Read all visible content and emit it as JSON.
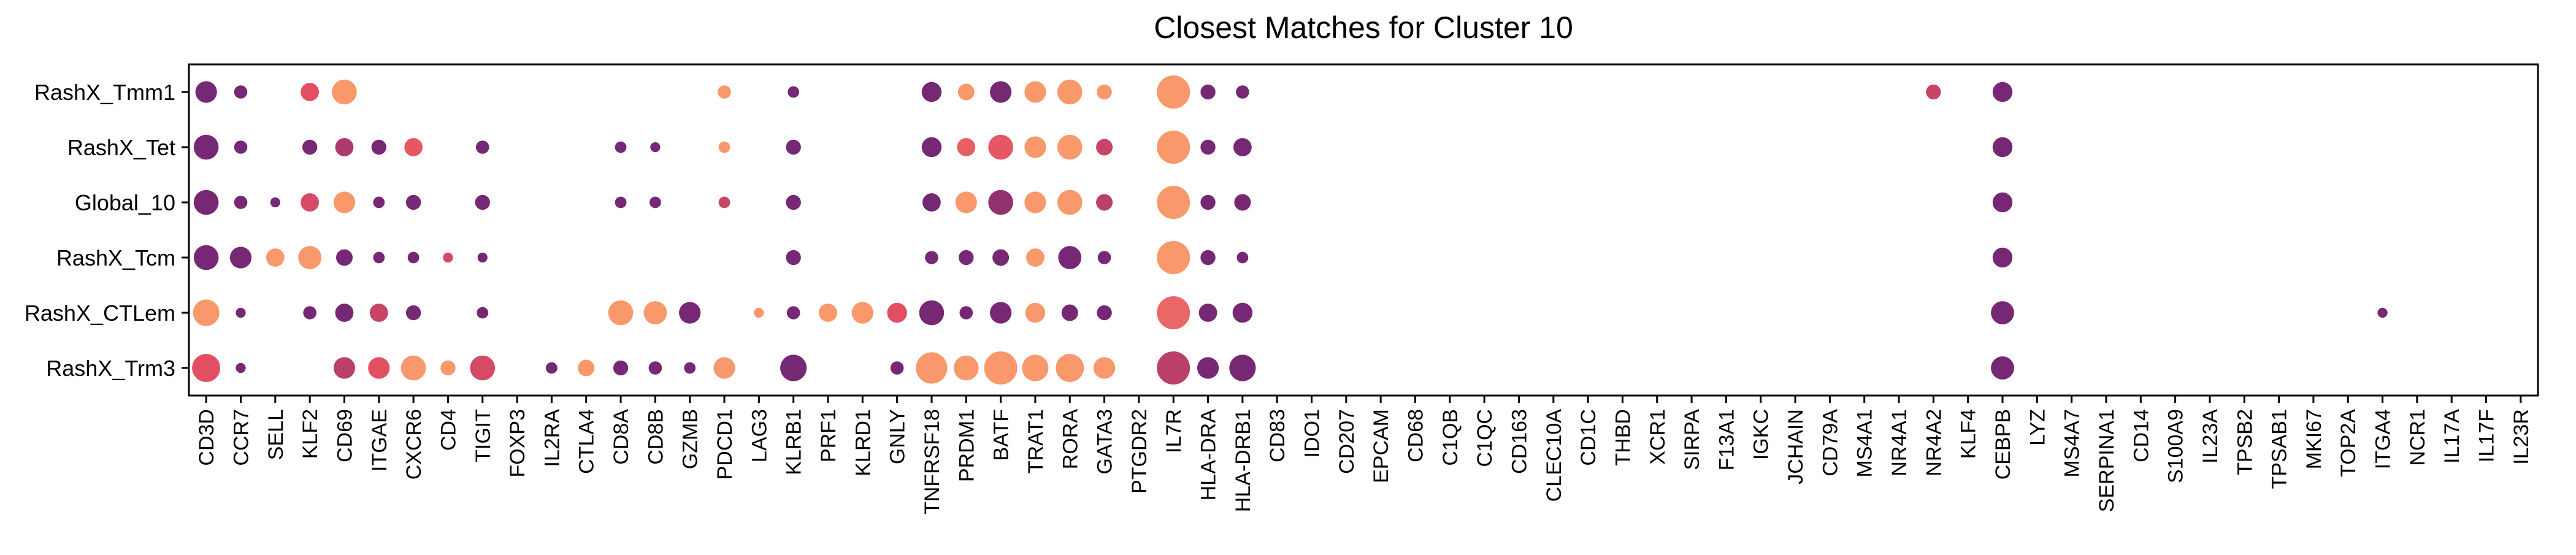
{
  "chart_data": {
    "type": "dot",
    "title": "Closest Matches for Cluster 10",
    "xlabel": "",
    "ylabel": "",
    "grid": false,
    "legend": "none",
    "categories": [
      "CD3D",
      "CCR7",
      "SELL",
      "KLF2",
      "CD69",
      "ITGAE",
      "CXCR6",
      "CD4",
      "TIGIT",
      "FOXP3",
      "IL2RA",
      "CTLA4",
      "CD8A",
      "CD8B",
      "GZMB",
      "PDCD1",
      "LAG3",
      "KLRB1",
      "PRF1",
      "KLRD1",
      "GNLY",
      "TNFRSF18",
      "PRDM1",
      "BATF",
      "TRAT1",
      "RORA",
      "GATA3",
      "PTGDR2",
      "IL7R",
      "HLA-DRA",
      "HLA-DRB1",
      "CD83",
      "IDO1",
      "CD207",
      "EPCAM",
      "CD68",
      "C1QB",
      "C1QC",
      "CD163",
      "CLEC10A",
      "CD1C",
      "THBD",
      "XCR1",
      "SIRPA",
      "F13A1",
      "IGKC",
      "JCHAIN",
      "CD79A",
      "MS4A1",
      "NR4A1",
      "NR4A2",
      "KLF4",
      "CEBPB",
      "LYZ",
      "MS4A7",
      "SERPINA1",
      "CD14",
      "S100A9",
      "IL23A",
      "TPSB2",
      "TPSAB1",
      "MKI67",
      "TOP2A",
      "ITGA4",
      "NCR1",
      "IL17A",
      "IL17F",
      "IL23R"
    ],
    "rows": [
      "RashX_Tmm1",
      "RashX_Tet",
      "Global_10",
      "RashX_Tcm",
      "RashX_CTLem",
      "RashX_Trm3"
    ],
    "colors": {
      "low": "#5b1e78",
      "mid": "#e24f62",
      "high": "#fca06b"
    },
    "points": [
      {
        "row": "RashX_Tmm1",
        "gene": "CD3D",
        "size": 0.65,
        "color": 0.1
      },
      {
        "row": "RashX_Tmm1",
        "gene": "CCR7",
        "size": 0.4,
        "color": 0.1
      },
      {
        "row": "RashX_Tmm1",
        "gene": "KLF2",
        "size": 0.55,
        "color": 0.5
      },
      {
        "row": "RashX_Tmm1",
        "gene": "CD69",
        "size": 0.75,
        "color": 0.95
      },
      {
        "row": "RashX_Tmm1",
        "gene": "PDCD1",
        "size": 0.4,
        "color": 0.95
      },
      {
        "row": "RashX_Tmm1",
        "gene": "KLRB1",
        "size": 0.35,
        "color": 0.1
      },
      {
        "row": "RashX_Tmm1",
        "gene": "TNFRSF18",
        "size": 0.6,
        "color": 0.1
      },
      {
        "row": "RashX_Tmm1",
        "gene": "PRDM1",
        "size": 0.5,
        "color": 0.95
      },
      {
        "row": "RashX_Tmm1",
        "gene": "BATF",
        "size": 0.65,
        "color": 0.1
      },
      {
        "row": "RashX_Tmm1",
        "gene": "TRAT1",
        "size": 0.65,
        "color": 0.95
      },
      {
        "row": "RashX_Tmm1",
        "gene": "RORA",
        "size": 0.75,
        "color": 0.95
      },
      {
        "row": "RashX_Tmm1",
        "gene": "GATA3",
        "size": 0.45,
        "color": 0.95
      },
      {
        "row": "RashX_Tmm1",
        "gene": "IL7R",
        "size": 1.0,
        "color": 0.95
      },
      {
        "row": "RashX_Tmm1",
        "gene": "HLA-DRA",
        "size": 0.45,
        "color": 0.1
      },
      {
        "row": "RashX_Tmm1",
        "gene": "HLA-DRB1",
        "size": 0.4,
        "color": 0.1
      },
      {
        "row": "RashX_Tmm1",
        "gene": "NR4A2",
        "size": 0.45,
        "color": 0.4
      },
      {
        "row": "RashX_Tmm1",
        "gene": "CEBPB",
        "size": 0.6,
        "color": 0.1
      },
      {
        "row": "RashX_Tet",
        "gene": "CD3D",
        "size": 0.75,
        "color": 0.1
      },
      {
        "row": "RashX_Tet",
        "gene": "CCR7",
        "size": 0.4,
        "color": 0.1
      },
      {
        "row": "RashX_Tet",
        "gene": "KLF2",
        "size": 0.45,
        "color": 0.1
      },
      {
        "row": "RashX_Tet",
        "gene": "CD69",
        "size": 0.55,
        "color": 0.3
      },
      {
        "row": "RashX_Tet",
        "gene": "ITGAE",
        "size": 0.45,
        "color": 0.1
      },
      {
        "row": "RashX_Tet",
        "gene": "CXCR6",
        "size": 0.55,
        "color": 0.55
      },
      {
        "row": "RashX_Tet",
        "gene": "TIGIT",
        "size": 0.4,
        "color": 0.1
      },
      {
        "row": "RashX_Tet",
        "gene": "CD8A",
        "size": 0.35,
        "color": 0.1
      },
      {
        "row": "RashX_Tet",
        "gene": "CD8B",
        "size": 0.3,
        "color": 0.1
      },
      {
        "row": "RashX_Tet",
        "gene": "PDCD1",
        "size": 0.35,
        "color": 0.95
      },
      {
        "row": "RashX_Tet",
        "gene": "KLRB1",
        "size": 0.45,
        "color": 0.1
      },
      {
        "row": "RashX_Tet",
        "gene": "TNFRSF18",
        "size": 0.6,
        "color": 0.1
      },
      {
        "row": "RashX_Tet",
        "gene": "PRDM1",
        "size": 0.55,
        "color": 0.6
      },
      {
        "row": "RashX_Tet",
        "gene": "BATF",
        "size": 0.75,
        "color": 0.55
      },
      {
        "row": "RashX_Tet",
        "gene": "TRAT1",
        "size": 0.65,
        "color": 0.95
      },
      {
        "row": "RashX_Tet",
        "gene": "RORA",
        "size": 0.75,
        "color": 0.95
      },
      {
        "row": "RashX_Tet",
        "gene": "GATA3",
        "size": 0.5,
        "color": 0.4
      },
      {
        "row": "RashX_Tet",
        "gene": "IL7R",
        "size": 1.0,
        "color": 0.95
      },
      {
        "row": "RashX_Tet",
        "gene": "HLA-DRA",
        "size": 0.45,
        "color": 0.1
      },
      {
        "row": "RashX_Tet",
        "gene": "HLA-DRB1",
        "size": 0.55,
        "color": 0.1
      },
      {
        "row": "RashX_Tet",
        "gene": "CEBPB",
        "size": 0.6,
        "color": 0.1
      },
      {
        "row": "Global_10",
        "gene": "CD3D",
        "size": 0.75,
        "color": 0.1
      },
      {
        "row": "Global_10",
        "gene": "CCR7",
        "size": 0.4,
        "color": 0.1
      },
      {
        "row": "Global_10",
        "gene": "SELL",
        "size": 0.3,
        "color": 0.1
      },
      {
        "row": "Global_10",
        "gene": "KLF2",
        "size": 0.55,
        "color": 0.45
      },
      {
        "row": "Global_10",
        "gene": "CD69",
        "size": 0.65,
        "color": 0.95
      },
      {
        "row": "Global_10",
        "gene": "ITGAE",
        "size": 0.35,
        "color": 0.1
      },
      {
        "row": "Global_10",
        "gene": "CXCR6",
        "size": 0.45,
        "color": 0.1
      },
      {
        "row": "Global_10",
        "gene": "TIGIT",
        "size": 0.45,
        "color": 0.1
      },
      {
        "row": "Global_10",
        "gene": "CD8A",
        "size": 0.35,
        "color": 0.1
      },
      {
        "row": "Global_10",
        "gene": "CD8B",
        "size": 0.35,
        "color": 0.1
      },
      {
        "row": "Global_10",
        "gene": "PDCD1",
        "size": 0.35,
        "color": 0.4
      },
      {
        "row": "Global_10",
        "gene": "KLRB1",
        "size": 0.45,
        "color": 0.1
      },
      {
        "row": "Global_10",
        "gene": "TNFRSF18",
        "size": 0.55,
        "color": 0.1
      },
      {
        "row": "Global_10",
        "gene": "PRDM1",
        "size": 0.65,
        "color": 0.95
      },
      {
        "row": "Global_10",
        "gene": "BATF",
        "size": 0.75,
        "color": 0.2
      },
      {
        "row": "Global_10",
        "gene": "TRAT1",
        "size": 0.65,
        "color": 0.95
      },
      {
        "row": "Global_10",
        "gene": "RORA",
        "size": 0.75,
        "color": 0.95
      },
      {
        "row": "Global_10",
        "gene": "GATA3",
        "size": 0.5,
        "color": 0.35
      },
      {
        "row": "Global_10",
        "gene": "IL7R",
        "size": 1.0,
        "color": 0.95
      },
      {
        "row": "Global_10",
        "gene": "HLA-DRA",
        "size": 0.45,
        "color": 0.1
      },
      {
        "row": "Global_10",
        "gene": "HLA-DRB1",
        "size": 0.5,
        "color": 0.1
      },
      {
        "row": "Global_10",
        "gene": "CEBPB",
        "size": 0.6,
        "color": 0.1
      },
      {
        "row": "RashX_Tcm",
        "gene": "CD3D",
        "size": 0.75,
        "color": 0.1
      },
      {
        "row": "RashX_Tcm",
        "gene": "CCR7",
        "size": 0.65,
        "color": 0.1
      },
      {
        "row": "RashX_Tcm",
        "gene": "SELL",
        "size": 0.55,
        "color": 0.95
      },
      {
        "row": "RashX_Tcm",
        "gene": "KLF2",
        "size": 0.7,
        "color": 0.95
      },
      {
        "row": "RashX_Tcm",
        "gene": "CD69",
        "size": 0.5,
        "color": 0.1
      },
      {
        "row": "RashX_Tcm",
        "gene": "ITGAE",
        "size": 0.35,
        "color": 0.1
      },
      {
        "row": "RashX_Tcm",
        "gene": "CXCR6",
        "size": 0.35,
        "color": 0.1
      },
      {
        "row": "RashX_Tcm",
        "gene": "CD4",
        "size": 0.3,
        "color": 0.45
      },
      {
        "row": "RashX_Tcm",
        "gene": "TIGIT",
        "size": 0.3,
        "color": 0.1
      },
      {
        "row": "RashX_Tcm",
        "gene": "KLRB1",
        "size": 0.45,
        "color": 0.1
      },
      {
        "row": "RashX_Tcm",
        "gene": "TNFRSF18",
        "size": 0.4,
        "color": 0.1
      },
      {
        "row": "RashX_Tcm",
        "gene": "PRDM1",
        "size": 0.45,
        "color": 0.1
      },
      {
        "row": "RashX_Tcm",
        "gene": "BATF",
        "size": 0.5,
        "color": 0.1
      },
      {
        "row": "RashX_Tcm",
        "gene": "TRAT1",
        "size": 0.55,
        "color": 0.95
      },
      {
        "row": "RashX_Tcm",
        "gene": "RORA",
        "size": 0.7,
        "color": 0.1
      },
      {
        "row": "RashX_Tcm",
        "gene": "GATA3",
        "size": 0.4,
        "color": 0.1
      },
      {
        "row": "RashX_Tcm",
        "gene": "IL7R",
        "size": 1.0,
        "color": 0.95
      },
      {
        "row": "RashX_Tcm",
        "gene": "HLA-DRA",
        "size": 0.45,
        "color": 0.1
      },
      {
        "row": "RashX_Tcm",
        "gene": "HLA-DRB1",
        "size": 0.35,
        "color": 0.1
      },
      {
        "row": "RashX_Tcm",
        "gene": "CEBPB",
        "size": 0.6,
        "color": 0.1
      },
      {
        "row": "RashX_CTLem",
        "gene": "CD3D",
        "size": 0.8,
        "color": 0.95
      },
      {
        "row": "RashX_CTLem",
        "gene": "CCR7",
        "size": 0.3,
        "color": 0.1
      },
      {
        "row": "RashX_CTLem",
        "gene": "KLF2",
        "size": 0.4,
        "color": 0.1
      },
      {
        "row": "RashX_CTLem",
        "gene": "CD69",
        "size": 0.55,
        "color": 0.1
      },
      {
        "row": "RashX_CTLem",
        "gene": "ITGAE",
        "size": 0.55,
        "color": 0.4
      },
      {
        "row": "RashX_CTLem",
        "gene": "CXCR6",
        "size": 0.45,
        "color": 0.1
      },
      {
        "row": "RashX_CTLem",
        "gene": "TIGIT",
        "size": 0.35,
        "color": 0.1
      },
      {
        "row": "RashX_CTLem",
        "gene": "CD8A",
        "size": 0.75,
        "color": 0.95
      },
      {
        "row": "RashX_CTLem",
        "gene": "CD8B",
        "size": 0.7,
        "color": 0.95
      },
      {
        "row": "RashX_CTLem",
        "gene": "GZMB",
        "size": 0.65,
        "color": 0.1
      },
      {
        "row": "RashX_CTLem",
        "gene": "LAG3",
        "size": 0.3,
        "color": 0.95
      },
      {
        "row": "RashX_CTLem",
        "gene": "KLRB1",
        "size": 0.4,
        "color": 0.1
      },
      {
        "row": "RashX_CTLem",
        "gene": "PRF1",
        "size": 0.55,
        "color": 0.95
      },
      {
        "row": "RashX_CTLem",
        "gene": "KLRD1",
        "size": 0.65,
        "color": 0.95
      },
      {
        "row": "RashX_CTLem",
        "gene": "GNLY",
        "size": 0.6,
        "color": 0.5
      },
      {
        "row": "RashX_CTLem",
        "gene": "TNFRSF18",
        "size": 0.75,
        "color": 0.1
      },
      {
        "row": "RashX_CTLem",
        "gene": "PRDM1",
        "size": 0.4,
        "color": 0.1
      },
      {
        "row": "RashX_CTLem",
        "gene": "BATF",
        "size": 0.65,
        "color": 0.1
      },
      {
        "row": "RashX_CTLem",
        "gene": "TRAT1",
        "size": 0.6,
        "color": 0.95
      },
      {
        "row": "RashX_CTLem",
        "gene": "RORA",
        "size": 0.5,
        "color": 0.1
      },
      {
        "row": "RashX_CTLem",
        "gene": "GATA3",
        "size": 0.45,
        "color": 0.1
      },
      {
        "row": "RashX_CTLem",
        "gene": "IL7R",
        "size": 1.0,
        "color": 0.65
      },
      {
        "row": "RashX_CTLem",
        "gene": "HLA-DRA",
        "size": 0.55,
        "color": 0.1
      },
      {
        "row": "RashX_CTLem",
        "gene": "HLA-DRB1",
        "size": 0.6,
        "color": 0.1
      },
      {
        "row": "RashX_CTLem",
        "gene": "CEBPB",
        "size": 0.7,
        "color": 0.1
      },
      {
        "row": "RashX_CTLem",
        "gene": "ITGA4",
        "size": 0.3,
        "color": 0.1
      },
      {
        "row": "RashX_Trm3",
        "gene": "CD3D",
        "size": 0.85,
        "color": 0.5
      },
      {
        "row": "RashX_Trm3",
        "gene": "CCR7",
        "size": 0.3,
        "color": 0.1
      },
      {
        "row": "RashX_Trm3",
        "gene": "CD69",
        "size": 0.65,
        "color": 0.35
      },
      {
        "row": "RashX_Trm3",
        "gene": "ITGAE",
        "size": 0.65,
        "color": 0.5
      },
      {
        "row": "RashX_Trm3",
        "gene": "CXCR6",
        "size": 0.75,
        "color": 0.95
      },
      {
        "row": "RashX_Trm3",
        "gene": "CD4",
        "size": 0.45,
        "color": 0.95
      },
      {
        "row": "RashX_Trm3",
        "gene": "TIGIT",
        "size": 0.75,
        "color": 0.45
      },
      {
        "row": "RashX_Trm3",
        "gene": "IL2RA",
        "size": 0.35,
        "color": 0.1
      },
      {
        "row": "RashX_Trm3",
        "gene": "CTLA4",
        "size": 0.5,
        "color": 0.95
      },
      {
        "row": "RashX_Trm3",
        "gene": "CD8A",
        "size": 0.45,
        "color": 0.1
      },
      {
        "row": "RashX_Trm3",
        "gene": "CD8B",
        "size": 0.4,
        "color": 0.1
      },
      {
        "row": "RashX_Trm3",
        "gene": "GZMB",
        "size": 0.35,
        "color": 0.1
      },
      {
        "row": "RashX_Trm3",
        "gene": "PDCD1",
        "size": 0.65,
        "color": 0.95
      },
      {
        "row": "RashX_Trm3",
        "gene": "KLRB1",
        "size": 0.8,
        "color": 0.1
      },
      {
        "row": "RashX_Trm3",
        "gene": "GNLY",
        "size": 0.4,
        "color": 0.1
      },
      {
        "row": "RashX_Trm3",
        "gene": "TNFRSF18",
        "size": 0.95,
        "color": 0.95
      },
      {
        "row": "RashX_Trm3",
        "gene": "PRDM1",
        "size": 0.75,
        "color": 0.95
      },
      {
        "row": "RashX_Trm3",
        "gene": "BATF",
        "size": 1.0,
        "color": 0.95
      },
      {
        "row": "RashX_Trm3",
        "gene": "TRAT1",
        "size": 0.8,
        "color": 0.95
      },
      {
        "row": "RashX_Trm3",
        "gene": "RORA",
        "size": 0.85,
        "color": 0.95
      },
      {
        "row": "RashX_Trm3",
        "gene": "GATA3",
        "size": 0.65,
        "color": 0.95
      },
      {
        "row": "RashX_Trm3",
        "gene": "IL7R",
        "size": 1.0,
        "color": 0.35
      },
      {
        "row": "RashX_Trm3",
        "gene": "HLA-DRA",
        "size": 0.65,
        "color": 0.1
      },
      {
        "row": "RashX_Trm3",
        "gene": "HLA-DRB1",
        "size": 0.8,
        "color": 0.1
      },
      {
        "row": "RashX_Trm3",
        "gene": "CEBPB",
        "size": 0.7,
        "color": 0.1
      }
    ]
  }
}
